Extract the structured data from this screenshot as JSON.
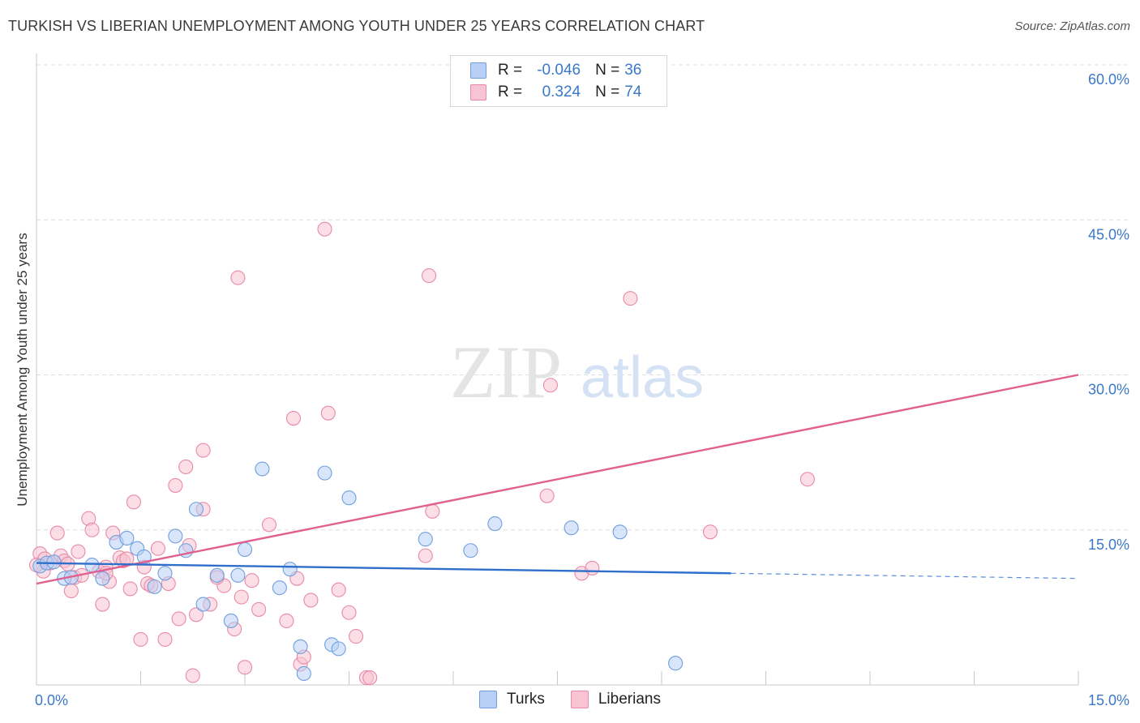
{
  "title": "TURKISH VS LIBERIAN UNEMPLOYMENT AMONG YOUTH UNDER 25 YEARS CORRELATION CHART",
  "source": "Source: ZipAtlas.com",
  "watermark": {
    "zip": "ZIP",
    "atlas": "atlas"
  },
  "legend": {
    "rows": [
      {
        "r_label": "R =",
        "r_value": "-0.046",
        "n_label": "N =",
        "n_value": "36"
      },
      {
        "r_label": "R =",
        "r_value": "0.324",
        "n_label": "N =",
        "n_value": "74"
      }
    ]
  },
  "bottom_legend": [
    "Turks",
    "Liberians"
  ],
  "colors": {
    "turks_fill": "#b8d0f5",
    "turks_stroke": "#6f9fdc",
    "turks_line": "#2f6fcc",
    "liberians_fill": "#f8c3d2",
    "liberians_stroke": "#e88aa8",
    "liberians_line": "#e06090",
    "axis_text": "#3a78c8",
    "grid": "#dedede"
  },
  "chart_data": {
    "type": "scatter",
    "title": "TURKISH VS LIBERIAN UNEMPLOYMENT AMONG YOUTH UNDER 25 YEARS CORRELATION CHART",
    "xlabel": "",
    "ylabel": "Unemployment Among Youth under 25 years",
    "xlim": [
      0,
      15
    ],
    "ylim": [
      0,
      60
    ],
    "x_tick_labels": [
      "0.0%",
      "15.0%"
    ],
    "y_ticks": [
      15,
      30,
      45,
      60
    ],
    "y_tick_labels": [
      "15.0%",
      "30.0%",
      "45.0%",
      "60.0%"
    ],
    "grid": true,
    "legend_position": "top-center",
    "series": [
      {
        "name": "Turks",
        "r": -0.046,
        "n": 36,
        "trend": {
          "x0": 0,
          "y0": 11.8,
          "x1": 10.0,
          "y1": 10.8,
          "dashed_to_x": 15,
          "dashed_to_y": 10.3
        },
        "points": [
          [
            0.05,
            11.5
          ],
          [
            0.15,
            11.8
          ],
          [
            0.25,
            11.9
          ],
          [
            0.4,
            10.3
          ],
          [
            0.5,
            10.4
          ],
          [
            0.8,
            11.6
          ],
          [
            0.95,
            10.3
          ],
          [
            1.15,
            13.8
          ],
          [
            1.3,
            14.2
          ],
          [
            1.45,
            13.2
          ],
          [
            1.55,
            12.4
          ],
          [
            1.7,
            9.5
          ],
          [
            1.85,
            10.8
          ],
          [
            2.0,
            14.4
          ],
          [
            2.15,
            13.0
          ],
          [
            2.3,
            17.0
          ],
          [
            2.4,
            7.8
          ],
          [
            2.6,
            10.6
          ],
          [
            2.8,
            6.2
          ],
          [
            2.9,
            10.6
          ],
          [
            3.0,
            13.1
          ],
          [
            3.25,
            20.9
          ],
          [
            3.5,
            9.4
          ],
          [
            3.65,
            11.2
          ],
          [
            3.8,
            3.7
          ],
          [
            3.85,
            1.1
          ],
          [
            4.15,
            20.5
          ],
          [
            4.25,
            3.9
          ],
          [
            4.35,
            3.5
          ],
          [
            4.5,
            18.1
          ],
          [
            5.6,
            14.1
          ],
          [
            6.25,
            13.0
          ],
          [
            6.6,
            15.6
          ],
          [
            7.7,
            15.2
          ],
          [
            8.4,
            14.8
          ],
          [
            9.2,
            2.1
          ]
        ]
      },
      {
        "name": "Liberians",
        "r": 0.324,
        "n": 74,
        "trend": {
          "x0": 0,
          "y0": 9.8,
          "x1": 15,
          "y1": 30.0
        },
        "points": [
          [
            0.05,
            12.7
          ],
          [
            0.1,
            11.0
          ],
          [
            0.2,
            11.8
          ],
          [
            0.3,
            14.7
          ],
          [
            0.35,
            12.5
          ],
          [
            0.4,
            12.0
          ],
          [
            0.5,
            9.1
          ],
          [
            0.55,
            10.4
          ],
          [
            0.6,
            12.9
          ],
          [
            0.65,
            10.6
          ],
          [
            0.75,
            16.1
          ],
          [
            0.8,
            15.0
          ],
          [
            0.9,
            11.0
          ],
          [
            0.95,
            7.8
          ],
          [
            1.0,
            11.4
          ],
          [
            1.05,
            10.0
          ],
          [
            1.1,
            14.7
          ],
          [
            1.2,
            12.3
          ],
          [
            1.25,
            12.0
          ],
          [
            1.3,
            12.2
          ],
          [
            1.35,
            9.3
          ],
          [
            1.4,
            17.7
          ],
          [
            1.5,
            4.4
          ],
          [
            1.55,
            11.4
          ],
          [
            1.6,
            9.8
          ],
          [
            1.65,
            9.6
          ],
          [
            1.75,
            13.2
          ],
          [
            1.85,
            4.4
          ],
          [
            1.9,
            9.8
          ],
          [
            2.0,
            19.3
          ],
          [
            2.05,
            6.4
          ],
          [
            2.15,
            21.1
          ],
          [
            2.2,
            13.5
          ],
          [
            2.25,
            0.9
          ],
          [
            2.3,
            6.8
          ],
          [
            2.4,
            17.0
          ],
          [
            2.4,
            22.7
          ],
          [
            2.5,
            7.8
          ],
          [
            2.7,
            9.6
          ],
          [
            2.85,
            5.4
          ],
          [
            2.9,
            39.4
          ],
          [
            2.95,
            8.5
          ],
          [
            3.0,
            1.7
          ],
          [
            3.1,
            10.1
          ],
          [
            3.2,
            7.3
          ],
          [
            3.35,
            15.5
          ],
          [
            3.6,
            6.2
          ],
          [
            3.7,
            25.8
          ],
          [
            3.75,
            10.3
          ],
          [
            3.8,
            2.0
          ],
          [
            3.85,
            2.7
          ],
          [
            3.95,
            8.2
          ],
          [
            4.15,
            44.1
          ],
          [
            4.2,
            26.3
          ],
          [
            4.35,
            9.2
          ],
          [
            4.5,
            7.0
          ],
          [
            4.6,
            4.7
          ],
          [
            4.75,
            0.7
          ],
          [
            4.8,
            0.7
          ],
          [
            5.6,
            12.5
          ],
          [
            5.65,
            39.6
          ],
          [
            5.7,
            16.8
          ],
          [
            7.4,
            29.0
          ],
          [
            7.35,
            18.3
          ],
          [
            7.85,
            10.8
          ],
          [
            8.0,
            11.3
          ],
          [
            8.55,
            37.4
          ],
          [
            9.7,
            14.8
          ],
          [
            11.1,
            19.9
          ],
          [
            0.0,
            11.6
          ],
          [
            0.12,
            12.2
          ],
          [
            0.45,
            11.7
          ],
          [
            1.0,
            10.8
          ],
          [
            2.6,
            10.4
          ]
        ]
      }
    ]
  }
}
